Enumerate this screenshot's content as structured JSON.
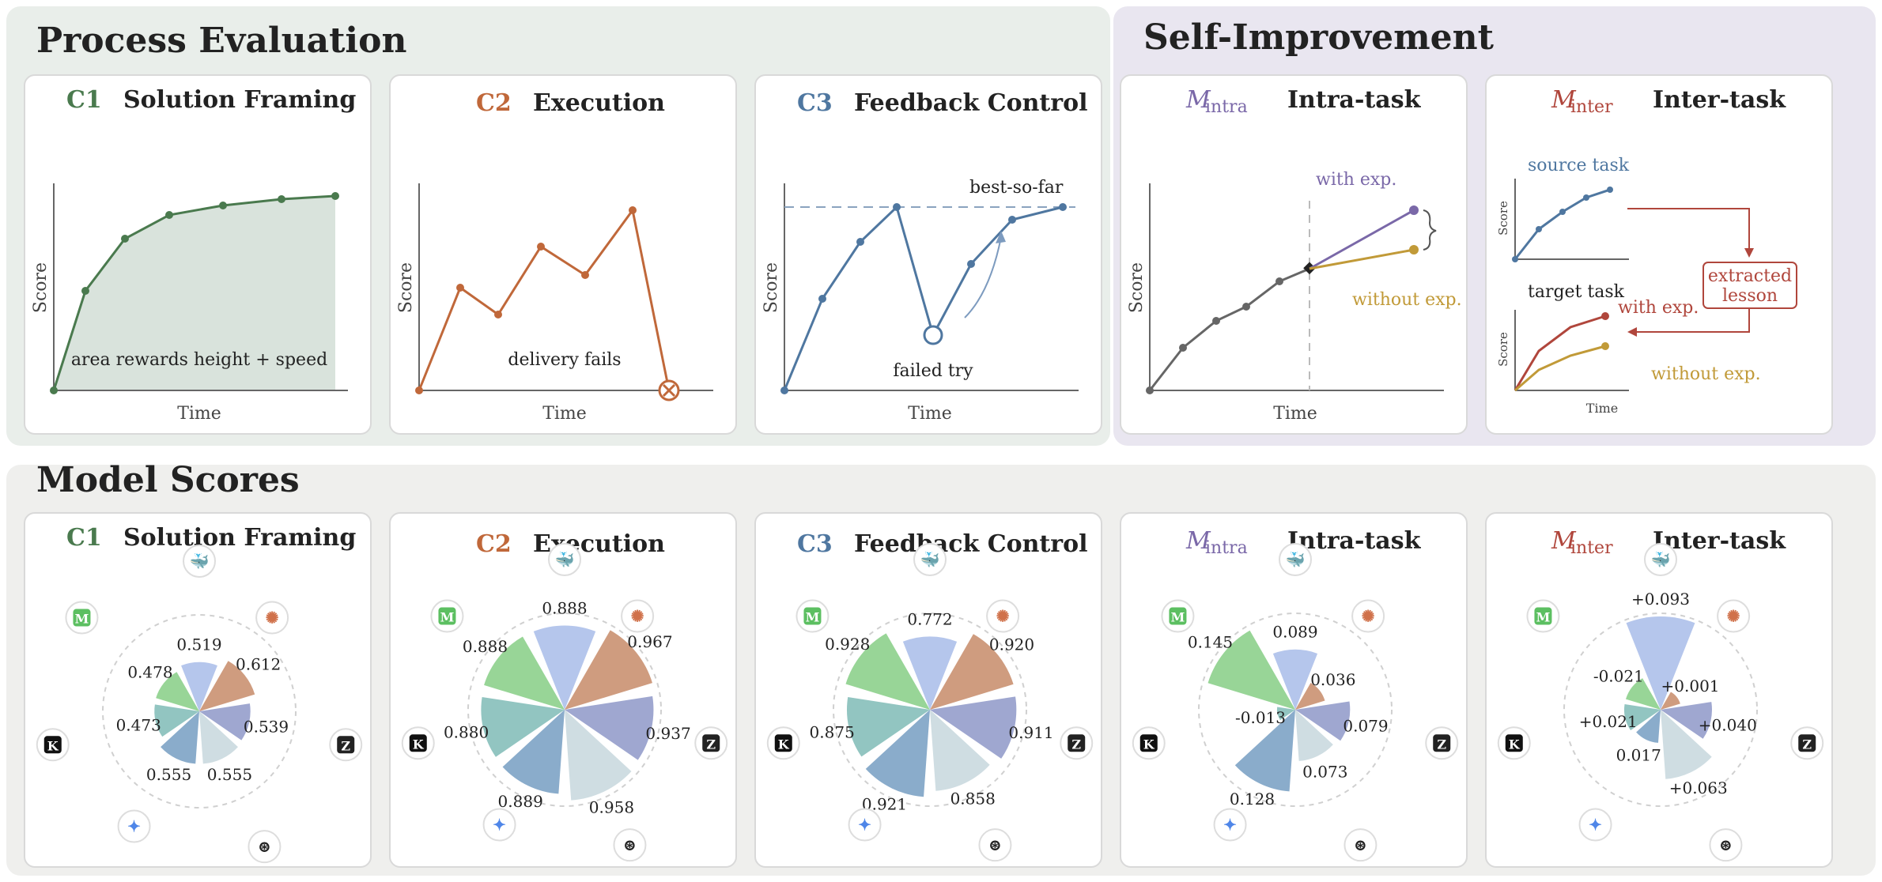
{
  "sections": {
    "process": "Process Evaluation",
    "self": "Self-Improvement",
    "scores": "Model Scores"
  },
  "colors": {
    "c1": "#4a7a4e",
    "c2": "#c0683a",
    "c3": "#4f77a0",
    "intra": "#7a68a8",
    "inter": "#b0463c",
    "withexp": "#7a68a8",
    "withoutexp": "#c19a38",
    "gray": "#666666"
  },
  "cards": {
    "c1": {
      "tag": "C1",
      "title": "Solution Framing",
      "xlabel": "Time",
      "ylabel": "Score",
      "note": "area rewards height + speed"
    },
    "c2": {
      "tag": "C2",
      "title": "Execution",
      "xlabel": "Time",
      "ylabel": "Score",
      "note": "delivery fails"
    },
    "c3": {
      "tag": "C3",
      "title": "Feedback Control",
      "xlabel": "Time",
      "ylabel": "Score",
      "note": "failed try",
      "note2": "best-so-far"
    },
    "intra": {
      "tag": "M",
      "sub": "intra",
      "title": "Intra-task",
      "xlabel": "Time",
      "ylabel": "Score",
      "with": "with exp.",
      "without": "without exp."
    },
    "inter": {
      "tag": "M",
      "sub": "inter",
      "title": "Inter-task",
      "xlabel": "Time",
      "ylabel": "Score",
      "source": "source task",
      "target": "target task",
      "lesson1": "extracted",
      "lesson2": "lesson",
      "with": "with exp.",
      "without": "without exp."
    }
  },
  "model_icons": [
    "deepseek-icon",
    "claude-icon",
    "zhipu-icon",
    "openai-icon",
    "gemini-icon",
    "kimi-icon",
    "minimax-icon"
  ],
  "chart_data": [
    {
      "type": "radial-bar",
      "title": "Solution Framing",
      "tag": "C1",
      "values": [
        0.519,
        0.612,
        0.539,
        0.555,
        0.555,
        0.473,
        0.478
      ],
      "labels": [
        "0.519",
        "0.612",
        "0.539",
        "0.555",
        "0.555",
        "0.473",
        "0.478"
      ]
    },
    {
      "type": "radial-bar",
      "title": "Execution",
      "tag": "C2",
      "values": [
        0.888,
        0.967,
        0.937,
        0.958,
        0.889,
        0.88,
        0.888
      ],
      "labels": [
        "0.888",
        "0.967",
        "0.937",
        "0.958",
        "0.889",
        "0.880",
        "0.888"
      ]
    },
    {
      "type": "radial-bar",
      "title": "Feedback Control",
      "tag": "C3",
      "values": [
        0.772,
        0.92,
        0.911,
        0.858,
        0.921,
        0.875,
        0.928
      ],
      "labels": [
        "0.772",
        "0.920",
        "0.911",
        "0.858",
        "0.921",
        "0.875",
        "0.928"
      ]
    },
    {
      "type": "radial-bar",
      "title": "Intra-task",
      "tag": "M_intra",
      "values": [
        0.089,
        0.036,
        0.079,
        0.073,
        0.128,
        -0.013,
        0.145
      ],
      "labels": [
        "0.089",
        "0.036",
        "0.079",
        "0.073",
        "0.128",
        "-0.013",
        "0.145"
      ]
    },
    {
      "type": "radial-bar",
      "title": "Inter-task",
      "tag": "M_inter",
      "values": [
        0.093,
        0.001,
        0.04,
        0.063,
        0.017,
        0.021,
        -0.021
      ],
      "labels": [
        "+0.093",
        "+0.001",
        "+0.040",
        "+0.063",
        "0.017",
        "+0.021",
        "-0.021"
      ]
    }
  ]
}
